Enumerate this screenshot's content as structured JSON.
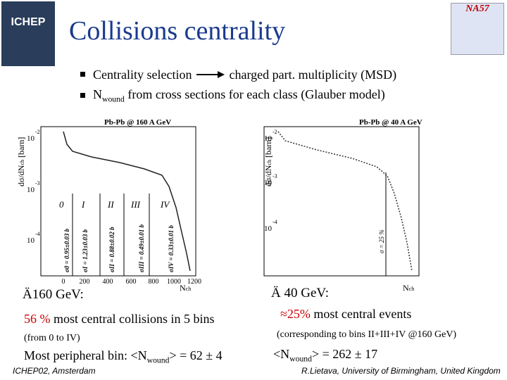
{
  "header": {
    "title": "Collisions centrality",
    "logo_left": "ICHEP",
    "logo_right": "NA57"
  },
  "bullets": [
    {
      "text": "Centrality selection",
      "after_arrow": "charged part. multiplicity (MSD)"
    },
    {
      "text": "N",
      "sub": "wound",
      "rest": " from  cross sections for each class (Glauber model)"
    }
  ],
  "plots": [
    {
      "title": "Pb-Pb @ 160 A GeV",
      "ylabel": "dσ/dN",
      "ylabel_sub": "ch",
      "ylabel_unit": "[barn]",
      "yticks": [
        {
          "base": "10",
          "exp": "-2"
        },
        {
          "base": "10",
          "exp": "-3"
        },
        {
          "base": "10",
          "exp": "-4"
        }
      ],
      "xticks": [
        "0",
        "200",
        "400",
        "600",
        "800",
        "1000",
        "1200"
      ],
      "xlabel": "N",
      "xlabel_sub": "ch",
      "classes": [
        "0",
        "I",
        "II",
        "III",
        "IV"
      ],
      "sigmas": [
        "σ0 = 0.95±0.03 b",
        "σI = 1.23±0.03 b",
        "σII = 0.88±0.02 b",
        "σIII = 0.49±0.01 b",
        "σIV = 0.33±0.01 b"
      ]
    },
    {
      "title": "Pb-Pb @ 40 A GeV",
      "ylabel": "dσ/dN",
      "ylabel_sub": "ch",
      "ylabel_unit": "[barn]",
      "yticks": [
        {
          "base": "10",
          "exp": "-2"
        },
        {
          "base": "10",
          "exp": "-3"
        },
        {
          "base": "10",
          "exp": "-4"
        }
      ],
      "xlabel": "N",
      "xlabel_sub": "ch",
      "sigma": "σ = 25 %"
    }
  ],
  "left_notes": {
    "marker": "Ä",
    "heading": "160 GeV:",
    "highlight": "56 %",
    "line1": " most central collisions in 5 bins",
    "line2": "(from 0 to IV)",
    "line3a": "Most peripheral bin: <N",
    "line3sub": "wound",
    "line3b": "> = 62 ± 4"
  },
  "right_notes": {
    "marker": "Ä",
    "heading": "40 GeV:",
    "highlight": "≈25%",
    "line1": " most central events",
    "line2": "(corresponding to bins II+III+IV @160 GeV)",
    "line3a": "<N",
    "line3sub": "wound",
    "line3b": "> = 262 ± 17"
  },
  "footer": {
    "left": "ICHEP02, Amsterdam",
    "right": "R.Lietava, University of Birmingham, United Kingdom"
  }
}
